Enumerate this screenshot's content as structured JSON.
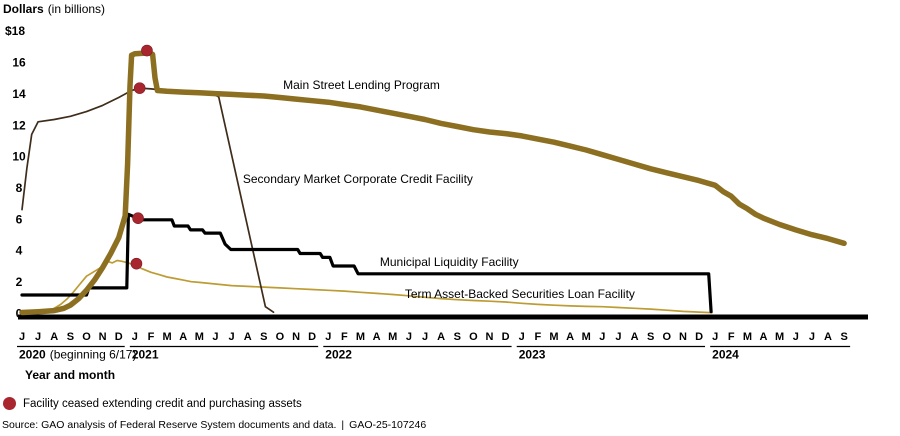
{
  "y_axis": {
    "title_bold": "Dollars",
    "title_note": "(in billions)"
  },
  "x_axis": {
    "title": "Year and month"
  },
  "legend": {
    "marker_color": "#a9262f",
    "label": "Facility ceased extending credit and purchasing assets"
  },
  "source": {
    "text": "Source: GAO analysis of Federal Reserve System documents and data.",
    "separator": "|",
    "report_id": "GAO-25-107246"
  },
  "chart_data": {
    "type": "line",
    "title": "Dollars (in billions)",
    "x_unit": "month",
    "x_start": "June 2020",
    "x_end": "September 2024",
    "ylim": [
      0,
      18
    ],
    "grid": false,
    "y_top_label": "$18",
    "y_ticks": [
      16,
      14,
      12,
      10,
      8,
      6,
      4,
      2,
      0
    ],
    "month_labels": [
      "J",
      "J",
      "A",
      "S",
      "O",
      "N",
      "D",
      "J",
      "F",
      "M",
      "A",
      "M",
      "J",
      "J",
      "A",
      "S",
      "O",
      "N",
      "D",
      "J",
      "F",
      "M",
      "A",
      "M",
      "J",
      "J",
      "A",
      "S",
      "O",
      "N",
      "D",
      "J",
      "F",
      "M",
      "A",
      "M",
      "J",
      "J",
      "A",
      "S",
      "O",
      "N",
      "D",
      "J",
      "F",
      "M",
      "A",
      "M",
      "J",
      "J",
      "A",
      "S"
    ],
    "year_groups": [
      {
        "label": "2020",
        "note": "(beginning 6/17)",
        "start": 0,
        "end": 6
      },
      {
        "label": "2021",
        "note": "",
        "start": 7,
        "end": 18
      },
      {
        "label": "2022",
        "note": "",
        "start": 19,
        "end": 30
      },
      {
        "label": "2023",
        "note": "",
        "start": 31,
        "end": 42
      },
      {
        "label": "2024",
        "note": "",
        "start": 43,
        "end": 51
      }
    ],
    "axis_color": "#000000",
    "series": [
      {
        "name": "Term Asset-Backed Securities Loan Facility",
        "color": "#bd9c33",
        "width": 1.7,
        "label_x_month": 23.75,
        "label_value": 0.96,
        "points": [
          [
            0.8,
            0.02
          ],
          [
            1.5,
            0.06
          ],
          [
            2,
            0.3
          ],
          [
            2.4,
            0.55
          ],
          [
            2.8,
            0.9
          ],
          [
            3.2,
            1.35
          ],
          [
            3.6,
            1.85
          ],
          [
            4,
            2.35
          ],
          [
            4.4,
            2.6
          ],
          [
            4.8,
            2.85
          ],
          [
            5.1,
            3.1
          ],
          [
            5.3,
            3.3
          ],
          [
            5.6,
            3.2
          ],
          [
            5.9,
            3.35
          ],
          [
            6.2,
            3.3
          ],
          [
            6.6,
            3.2
          ],
          [
            7.1,
            3.0
          ],
          [
            7.5,
            2.8
          ],
          [
            8,
            2.6
          ],
          [
            8.5,
            2.45
          ],
          [
            9,
            2.3
          ],
          [
            9.5,
            2.2
          ],
          [
            10,
            2.1
          ],
          [
            10.5,
            2.0
          ],
          [
            11,
            1.95
          ],
          [
            12,
            1.85
          ],
          [
            13,
            1.75
          ],
          [
            14,
            1.7
          ],
          [
            15,
            1.65
          ],
          [
            16,
            1.6
          ],
          [
            17,
            1.55
          ],
          [
            18,
            1.5
          ],
          [
            19,
            1.45
          ],
          [
            20,
            1.4
          ],
          [
            21,
            1.32
          ],
          [
            22,
            1.25
          ],
          [
            23,
            1.18
          ],
          [
            24,
            1.1
          ],
          [
            25,
            1.0
          ],
          [
            26,
            0.92
          ],
          [
            27,
            0.85
          ],
          [
            28,
            0.8
          ],
          [
            29,
            0.75
          ],
          [
            30,
            0.7
          ],
          [
            31,
            0.62
          ],
          [
            32,
            0.55
          ],
          [
            33,
            0.5
          ],
          [
            34,
            0.45
          ],
          [
            35,
            0.42
          ],
          [
            36,
            0.4
          ],
          [
            37,
            0.35
          ],
          [
            38,
            0.3
          ],
          [
            39,
            0.25
          ],
          [
            40,
            0.18
          ],
          [
            41,
            0.1
          ],
          [
            42,
            0.06
          ],
          [
            42.8,
            0.02
          ]
        ]
      },
      {
        "name": "Secondary Market Corporate Credit Facility",
        "color": "#3f2d1b",
        "width": 1.7,
        "label_x_month": 13.7,
        "label_value": 8.3,
        "points": [
          [
            0,
            6.6
          ],
          [
            0.3,
            9.2
          ],
          [
            0.6,
            11.4
          ],
          [
            1,
            12.2
          ],
          [
            2,
            12.35
          ],
          [
            3,
            12.55
          ],
          [
            4,
            12.85
          ],
          [
            5,
            13.25
          ],
          [
            6,
            13.75
          ],
          [
            6.8,
            14.2
          ],
          [
            7.3,
            14.35
          ],
          [
            8,
            14.3
          ],
          [
            9,
            14.2
          ],
          [
            10,
            14.1
          ],
          [
            11,
            14.0
          ],
          [
            12,
            13.9
          ],
          [
            12.2,
            13.8
          ],
          [
            15.1,
            0.4
          ],
          [
            15.6,
            0.05
          ]
        ]
      },
      {
        "name": "Municipal Liquidity Facility",
        "color": "#000000",
        "width": 3.2,
        "label_x_month": 22.2,
        "label_value": 3.0,
        "points": [
          [
            0,
            1.15
          ],
          [
            4.0,
            1.15
          ],
          [
            4.15,
            1.6
          ],
          [
            6.5,
            1.6
          ],
          [
            6.6,
            6.3
          ],
          [
            7.4,
            5.95
          ],
          [
            9.3,
            5.95
          ],
          [
            9.45,
            5.55
          ],
          [
            10.3,
            5.55
          ],
          [
            10.45,
            5.3
          ],
          [
            11.2,
            5.3
          ],
          [
            11.35,
            5.1
          ],
          [
            12.3,
            5.1
          ],
          [
            12.6,
            4.4
          ],
          [
            12.95,
            4.05
          ],
          [
            17.1,
            4.05
          ],
          [
            17.25,
            3.8
          ],
          [
            18.5,
            3.8
          ],
          [
            18.65,
            3.55
          ],
          [
            19.1,
            3.55
          ],
          [
            19.3,
            3.0
          ],
          [
            20.6,
            3.0
          ],
          [
            20.85,
            2.5
          ],
          [
            42.6,
            2.5
          ],
          [
            42.75,
            0.08
          ]
        ]
      },
      {
        "name": "Main Street Lending Program",
        "color": "#8d6f22",
        "width": 5.5,
        "label_x_month": 16.2,
        "label_value": 14.3,
        "points": [
          [
            0,
            0.03
          ],
          [
            1,
            0.08
          ],
          [
            2,
            0.15
          ],
          [
            2.6,
            0.3
          ],
          [
            3,
            0.5
          ],
          [
            3.5,
            0.9
          ],
          [
            4,
            1.45
          ],
          [
            4.5,
            2.1
          ],
          [
            5,
            2.9
          ],
          [
            5.5,
            3.8
          ],
          [
            6,
            4.8
          ],
          [
            6.4,
            6.2
          ],
          [
            6.55,
            9.5
          ],
          [
            6.7,
            14.5
          ],
          [
            6.8,
            16.45
          ],
          [
            7,
            16.55
          ],
          [
            7.9,
            16.6
          ],
          [
            8.1,
            16.5
          ],
          [
            8.25,
            15.0
          ],
          [
            8.4,
            14.2
          ],
          [
            9,
            14.15
          ],
          [
            10,
            14.1
          ],
          [
            11,
            14.05
          ],
          [
            12,
            14.0
          ],
          [
            13,
            13.95
          ],
          [
            14,
            13.9
          ],
          [
            15,
            13.85
          ],
          [
            16,
            13.75
          ],
          [
            17,
            13.65
          ],
          [
            18,
            13.55
          ],
          [
            19,
            13.45
          ],
          [
            20,
            13.3
          ],
          [
            21,
            13.15
          ],
          [
            22,
            12.95
          ],
          [
            23,
            12.75
          ],
          [
            24,
            12.55
          ],
          [
            25,
            12.35
          ],
          [
            26,
            12.1
          ],
          [
            27,
            11.9
          ],
          [
            28,
            11.7
          ],
          [
            29,
            11.55
          ],
          [
            30,
            11.45
          ],
          [
            31,
            11.3
          ],
          [
            32,
            11.1
          ],
          [
            33,
            10.9
          ],
          [
            34,
            10.65
          ],
          [
            35,
            10.4
          ],
          [
            36,
            10.1
          ],
          [
            37,
            9.8
          ],
          [
            38,
            9.5
          ],
          [
            39,
            9.2
          ],
          [
            40,
            8.95
          ],
          [
            41,
            8.7
          ],
          [
            42,
            8.45
          ],
          [
            43,
            8.15
          ],
          [
            43.5,
            7.75
          ],
          [
            44,
            7.45
          ],
          [
            44.5,
            6.95
          ],
          [
            45,
            6.65
          ],
          [
            45.5,
            6.3
          ],
          [
            46,
            6.05
          ],
          [
            47,
            5.65
          ],
          [
            48,
            5.3
          ],
          [
            49,
            5.0
          ],
          [
            50,
            4.75
          ],
          [
            51,
            4.45
          ]
        ]
      }
    ],
    "ceased_dots": [
      {
        "series": "Main Street Lending Program",
        "month_index": 7.75,
        "value": 16.75
      },
      {
        "series": "Secondary Market Corporate Credit Facility",
        "month_index": 7.3,
        "value": 14.35
      },
      {
        "series": "Municipal Liquidity Facility",
        "month_index": 7.2,
        "value": 6.05
      },
      {
        "series": "Term Asset-Backed Securities Loan Facility",
        "month_index": 7.1,
        "value": 3.15
      }
    ],
    "dot_color": "#a9262f"
  }
}
